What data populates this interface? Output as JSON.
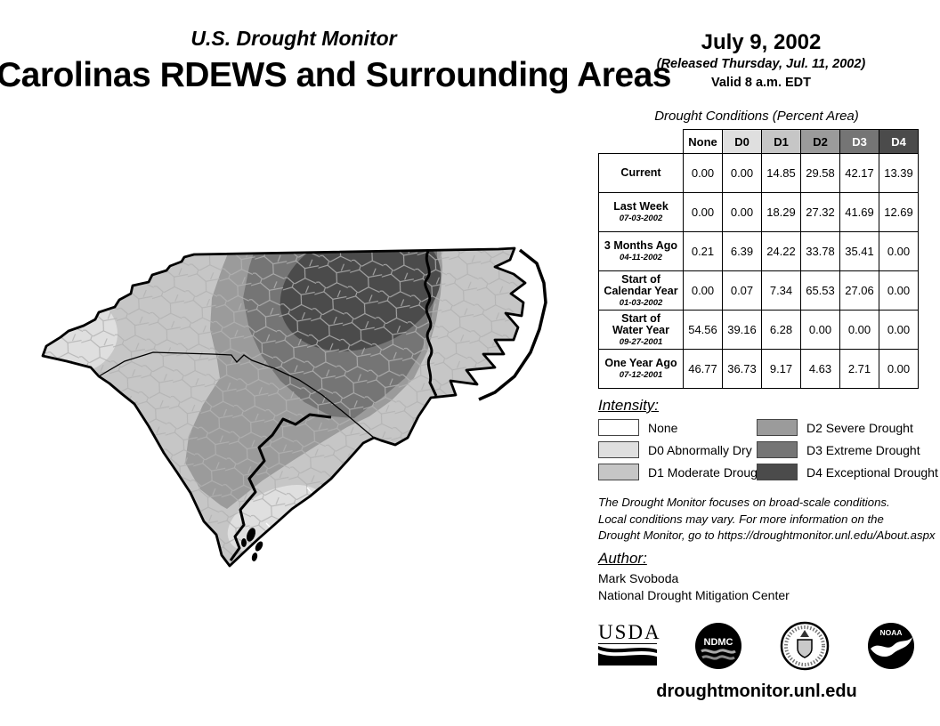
{
  "header": {
    "monitor_title": "U.S. Drought Monitor",
    "region_title": "Carolinas RDEWS and Surrounding Areas",
    "date": "July 9, 2002",
    "released": "(Released Thursday, Jul. 11, 2002)",
    "valid": "Valid 8 a.m. EDT"
  },
  "table": {
    "caption": "Drought Conditions (Percent Area)",
    "columns": [
      "None",
      "D0",
      "D1",
      "D2",
      "D3",
      "D4"
    ],
    "rows": [
      {
        "label": "Current",
        "date": "",
        "values": [
          "0.00",
          "0.00",
          "14.85",
          "29.58",
          "42.17",
          "13.39"
        ]
      },
      {
        "label": "Last Week",
        "date": "07-03-2002",
        "values": [
          "0.00",
          "0.00",
          "18.29",
          "27.32",
          "41.69",
          "12.69"
        ]
      },
      {
        "label": "3 Months Ago",
        "date": "04-11-2002",
        "values": [
          "0.21",
          "6.39",
          "24.22",
          "33.78",
          "35.41",
          "0.00"
        ]
      },
      {
        "label": "Start of\nCalendar Year",
        "date": "01-03-2002",
        "values": [
          "0.00",
          "0.07",
          "7.34",
          "65.53",
          "27.06",
          "0.00"
        ]
      },
      {
        "label": "Start of\nWater Year",
        "date": "09-27-2001",
        "values": [
          "54.56",
          "39.16",
          "6.28",
          "0.00",
          "0.00",
          "0.00"
        ]
      },
      {
        "label": "One Year Ago",
        "date": "07-12-2001",
        "values": [
          "46.77",
          "36.73",
          "9.17",
          "4.63",
          "2.71",
          "0.00"
        ]
      }
    ]
  },
  "legend": {
    "title": "Intensity:",
    "items": [
      {
        "code": "None",
        "label": "None",
        "color": "#ffffff"
      },
      {
        "code": "D0",
        "label": "D0 Abnormally Dry",
        "color": "#dfdfdf"
      },
      {
        "code": "D1",
        "label": "D1 Moderate Drought",
        "color": "#c6c6c6"
      },
      {
        "code": "D2",
        "label": "D2 Severe Drought",
        "color": "#9b9b9b"
      },
      {
        "code": "D3",
        "label": "D3 Extreme Drought",
        "color": "#757575"
      },
      {
        "code": "D4",
        "label": "D4 Exceptional Drought",
        "color": "#4b4b4b"
      }
    ]
  },
  "disclaimer": "The Drought Monitor focuses on broad-scale conditions.\nLocal conditions may vary. For more information on the\nDrought Monitor, go to https://droughtmonitor.unl.edu/About.aspx",
  "author": {
    "title": "Author:",
    "name": "Mark Svoboda",
    "org": "National Drought Mitigation Center"
  },
  "logos": [
    {
      "id": "usda",
      "text": "USDA"
    },
    {
      "id": "ndmc",
      "text": "NDMC"
    },
    {
      "id": "doc",
      "text": ""
    },
    {
      "id": "noaa",
      "text": "NOAA"
    }
  ],
  "footer": {
    "url": "droughtmonitor.unl.edu"
  }
}
